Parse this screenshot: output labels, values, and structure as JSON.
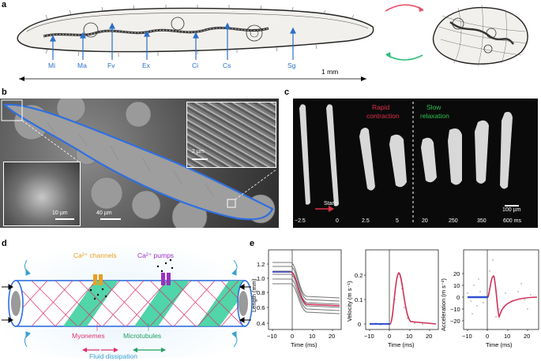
{
  "panel_labels": {
    "a": "a",
    "b": "b",
    "c": "c",
    "d": "d",
    "e": "e"
  },
  "panel_a": {
    "organelles": [
      "Mi",
      "Ma",
      "Fv",
      "Ex",
      "Ci",
      "Cs",
      "Sg"
    ],
    "scale_label": "1 mm",
    "colors": {
      "label": "#2a6fc9",
      "arrow_top": "#e8506a",
      "arrow_bottom": "#2ec07a"
    }
  },
  "panel_b": {
    "scale_main": "40 µm",
    "scale_inset_left": "10 µm",
    "scale_inset_right": "2 µm",
    "colors": {
      "outline": "#2f6fe0"
    }
  },
  "panel_c": {
    "rapid_line1": "Rapid",
    "rapid_line2": "contraction",
    "slow_line1": "Slow",
    "slow_line2": "relaxation",
    "start_label": "Start",
    "scale_label": "100 µm",
    "times": [
      "−2.5",
      "0",
      "2.5",
      "5",
      "20",
      "250",
      "350",
      "600 ms"
    ],
    "colors": {
      "rapid": "#e0304a",
      "slow": "#2ec050"
    }
  },
  "panel_d": {
    "ca_channels": "Ca²⁺ channels",
    "ca_pumps": "Ca²⁺ pumps",
    "myonemes": "Myonemes",
    "microtubules": "Microtubules",
    "fluid": "Fluid dissipation",
    "colors": {
      "channels": "#e8a020",
      "pumps": "#9a30c0",
      "myonemes": "#e0306a",
      "microtubules": "#20a060",
      "fluid": "#3aa0d0"
    }
  },
  "panel_e": {
    "plot1": {
      "ylabel": "Length (mm)",
      "xlabel": "Time (ms)",
      "yticks": [
        "0.4",
        "0.6",
        "0.8",
        "1.0",
        "1.2"
      ],
      "xticks": [
        "−10",
        "0",
        "10",
        "20"
      ]
    },
    "plot2": {
      "ylabel": "Velocity (m s⁻¹)",
      "xlabel": "Time (ms)",
      "yticks": [
        "0",
        "0.1",
        "0.2"
      ],
      "xticks": [
        "−10",
        "0",
        "10",
        "20"
      ]
    },
    "plot3": {
      "ylabel": "Acceleration (m s⁻²)",
      "xlabel": "Time (ms)",
      "yticks": [
        "−20",
        "−10",
        "0",
        "10",
        "20"
      ],
      "xticks": [
        "−10",
        "0",
        "10",
        "20"
      ]
    }
  }
}
